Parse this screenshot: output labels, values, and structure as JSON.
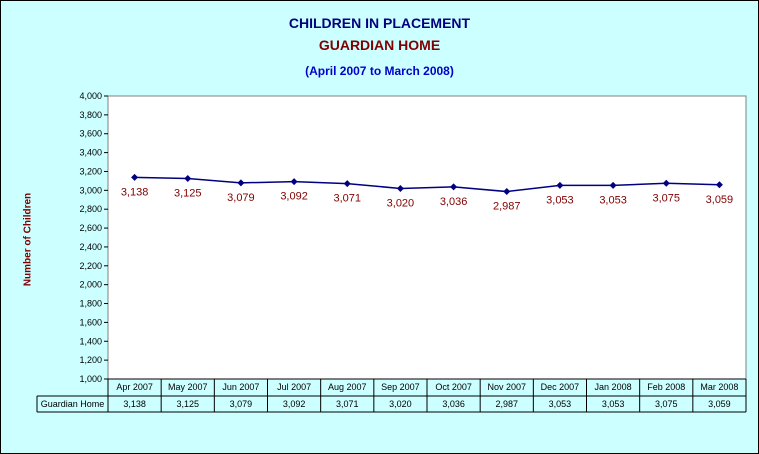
{
  "chart_data": {
    "type": "line",
    "title": "CHILDREN IN PLACEMENT",
    "subtitle": "GUARDIAN HOME",
    "date_range": "(April 2007 to March 2008)",
    "ylabel": "Number of Children",
    "xlabel": "",
    "ylim": [
      1000,
      4000
    ],
    "ytick_step": 200,
    "yticks": [
      "1,000",
      "1,200",
      "1,400",
      "1,600",
      "1,800",
      "2,000",
      "2,200",
      "2,400",
      "2,600",
      "2,800",
      "3,000",
      "3,200",
      "3,400",
      "3,600",
      "3,800",
      "4,000"
    ],
    "categories": [
      "Apr 2007",
      "May 2007",
      "Jun 2007",
      "Jul 2007",
      "Aug 2007",
      "Sep 2007",
      "Oct 2007",
      "Nov 2007",
      "Dec 2007",
      "Jan 2008",
      "Feb 2008",
      "Mar 2008"
    ],
    "series": [
      {
        "name": "Guardian Home",
        "values": [
          3138,
          3125,
          3079,
          3092,
          3071,
          3020,
          3036,
          2987,
          3053,
          3053,
          3075,
          3059
        ],
        "labels": [
          "3,138",
          "3,125",
          "3,079",
          "3,092",
          "3,071",
          "3,020",
          "3,036",
          "2,987",
          "3,053",
          "3,053",
          "3,075",
          "3,059"
        ],
        "color": "#000080",
        "label_color": "#800000"
      }
    ],
    "data_table": true,
    "grid": false,
    "background": "#ccffff",
    "plot_background": "#ffffff"
  }
}
